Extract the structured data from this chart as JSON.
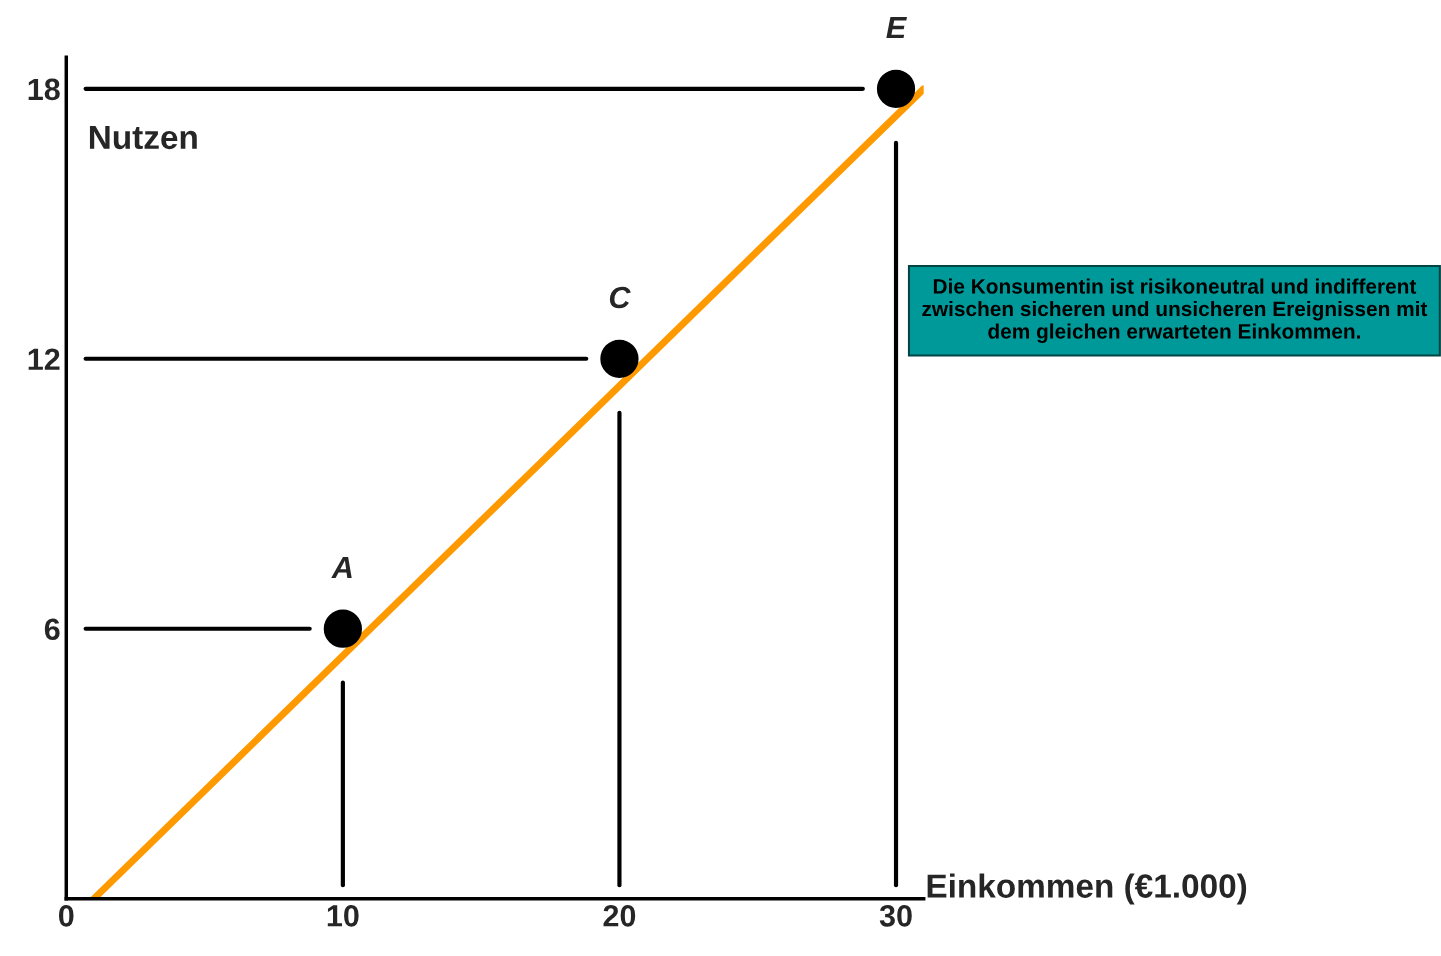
{
  "chart_data": {
    "type": "line",
    "xlabel": "Einkommen (€1.000)",
    "ylabel": "Nutzen",
    "xlim": [
      0,
      31
    ],
    "ylim": [
      0,
      18.7
    ],
    "xticks": [
      0,
      10,
      20,
      30
    ],
    "yticks": [
      6,
      12,
      18
    ],
    "grid": false,
    "legend": false,
    "series": [
      {
        "color": "#ff9900",
        "x": [
          1,
          31
        ],
        "values": [
          0,
          18
        ],
        "marker": "none"
      },
      {
        "type": "scatter",
        "color": "#000000",
        "x": [
          10,
          20,
          30
        ],
        "values": [
          6,
          12,
          18
        ],
        "marker": "circle"
      }
    ],
    "ref_lines": [
      {
        "axis": "y",
        "value": 6,
        "color": "#000000"
      },
      {
        "axis": "y",
        "value": 12,
        "color": "#000000"
      },
      {
        "axis": "y",
        "value": 18,
        "color": "#000000"
      },
      {
        "axis": "x",
        "value": 10,
        "color": "#000000"
      },
      {
        "axis": "x",
        "value": 20,
        "color": "#000000"
      },
      {
        "axis": "x",
        "value": 30,
        "color": "#000000"
      }
    ],
    "annotations": [
      {
        "text": "A",
        "x": 10,
        "y": 6
      },
      {
        "text": "C",
        "x": 20,
        "y": 12
      },
      {
        "text": "E",
        "x": 30,
        "y": 18
      },
      "Die Konsumentin ist risikoneutral und indifferent zwischen sicheren und unsicheren Ereignissen mit dem gleichen erwarteten Einkommen."
    ]
  }
}
